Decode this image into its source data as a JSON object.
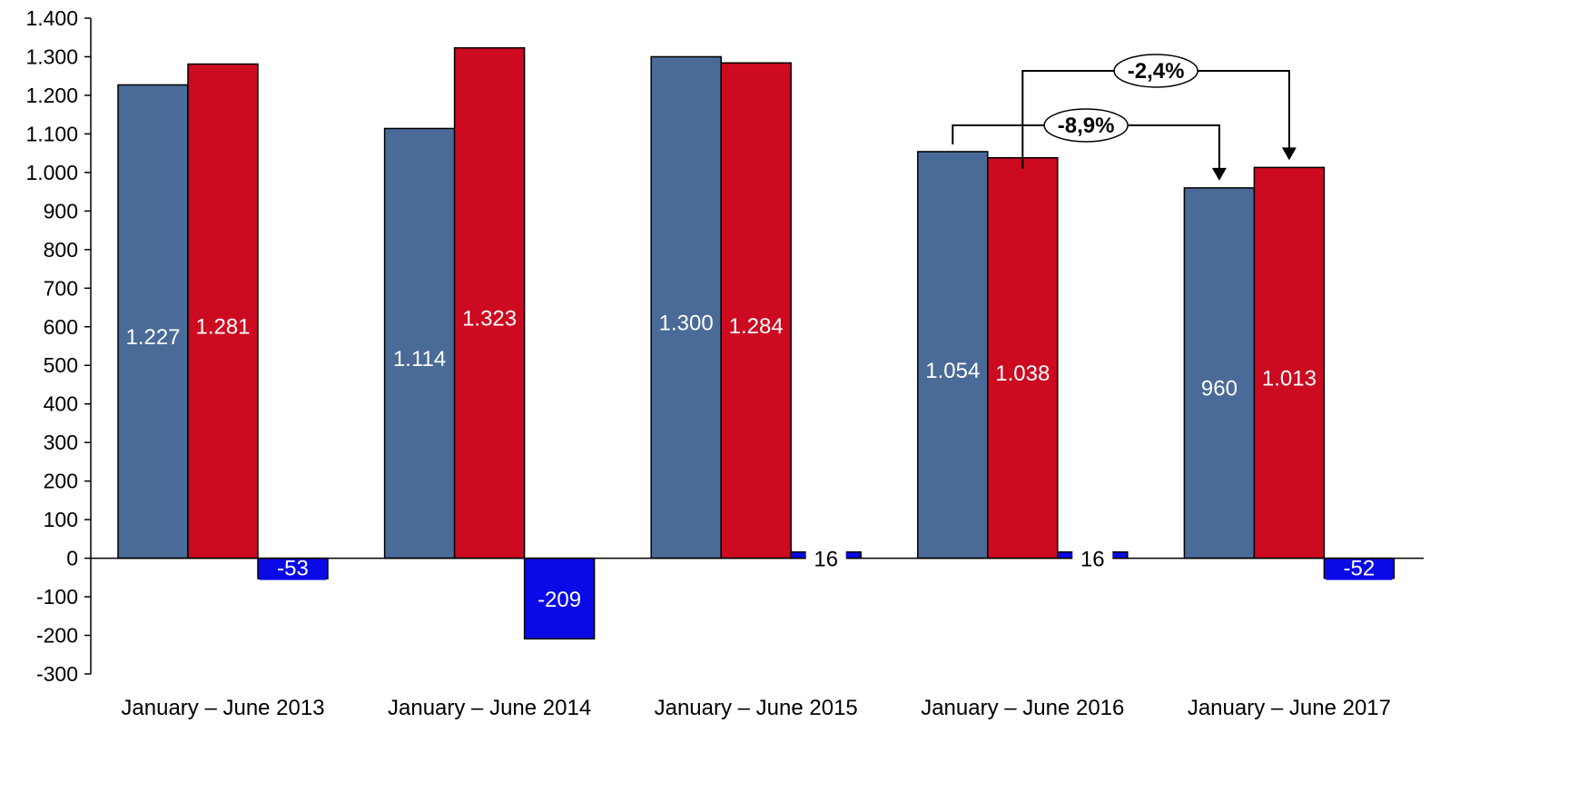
{
  "chart_data": {
    "type": "bar",
    "categories": [
      "January – June 2013",
      "January – June 2014",
      "January – June 2015",
      "January – June 2016",
      "January – June 2017"
    ],
    "series": [
      {
        "values": [
          1227,
          1114,
          1300,
          1054,
          960
        ],
        "labels": [
          "1.227",
          "1.114",
          "1.300",
          "1.054",
          "960"
        ],
        "color": "#4a6a97"
      },
      {
        "values": [
          1281,
          1323,
          1284,
          1038,
          1013
        ],
        "labels": [
          "1.281",
          "1.323",
          "1.284",
          "1.038",
          "1.013"
        ],
        "color": "#cc0a20"
      },
      {
        "values": [
          -53,
          -209,
          16,
          16,
          -52
        ],
        "labels": [
          "-53",
          "-209",
          "16",
          "16",
          "-52"
        ],
        "color": "#0a0ae6"
      }
    ],
    "ylim": [
      -300,
      1400
    ],
    "yticks": [
      1400,
      1300,
      1200,
      1100,
      1000,
      900,
      800,
      700,
      600,
      500,
      400,
      300,
      200,
      100,
      0,
      -100,
      -200,
      -300
    ],
    "ytick_labels": [
      "1.400",
      "1.300",
      "1.200",
      "1.100",
      "1.000",
      "900",
      "800",
      "700",
      "600",
      "500",
      "400",
      "300",
      "200",
      "100",
      "0",
      "-100",
      "-200",
      "-300"
    ],
    "grid": false,
    "annotations": [
      {
        "text": "-8,9%",
        "from": {
          "category": 3,
          "series": 0
        },
        "to": {
          "category": 4,
          "series": 0
        }
      },
      {
        "text": "-2,4%",
        "from": {
          "category": 3,
          "series": 1
        },
        "to": {
          "category": 4,
          "series": 1
        }
      }
    ]
  }
}
